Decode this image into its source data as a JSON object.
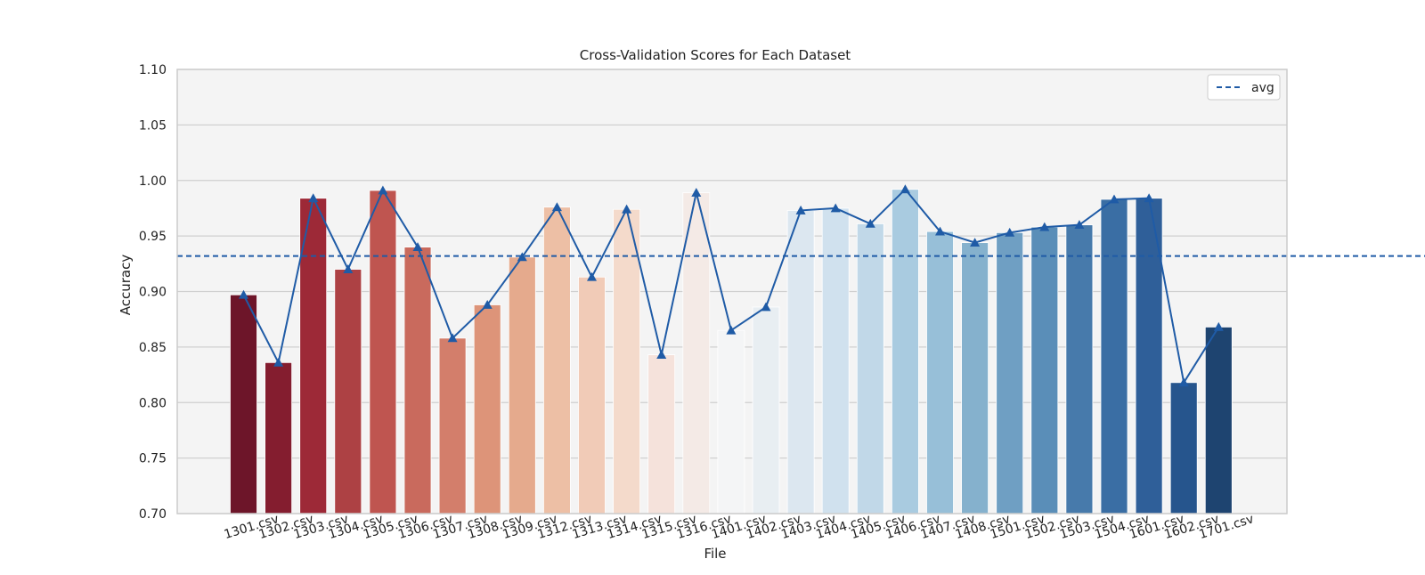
{
  "chart_data": {
    "type": "bar",
    "title": "Cross-Validation Scores for Each Dataset",
    "xlabel": "File",
    "ylabel": "Accuracy",
    "ylim": [
      0.7,
      1.1
    ],
    "yticks": [
      "0.70",
      "0.75",
      "0.80",
      "0.85",
      "0.90",
      "0.95",
      "1.00",
      "1.05",
      "1.10"
    ],
    "grid": true,
    "legend": {
      "placement": "top-right",
      "entries": [
        "avg"
      ]
    },
    "avg": 0.932,
    "categories": [
      "1301.csv",
      "1302.csv",
      "1303.csv",
      "1304.csv",
      "1305.csv",
      "1306.csv",
      "1307.csv",
      "1308.csv",
      "1309.csv",
      "1312.csv",
      "1313.csv",
      "1314.csv",
      "1315.csv",
      "1316.csv",
      "1401.csv",
      "1402.csv",
      "1403.csv",
      "1404.csv",
      "1405.csv",
      "1406.csv",
      "1407.csv",
      "1408.csv",
      "1501.csv",
      "1502.csv",
      "1503.csv",
      "1504.csv",
      "1601.csv",
      "1602.csv",
      "1701.csv"
    ],
    "values": [
      0.897,
      0.836,
      0.984,
      0.92,
      0.991,
      0.94,
      0.858,
      0.888,
      0.931,
      0.976,
      0.913,
      0.974,
      0.843,
      0.989,
      0.865,
      0.886,
      0.973,
      0.975,
      0.961,
      0.992,
      0.954,
      0.944,
      0.953,
      0.958,
      0.96,
      0.983,
      0.984,
      0.818,
      0.868
    ],
    "line_values": [
      0.897,
      0.836,
      0.984,
      0.92,
      0.991,
      0.94,
      0.858,
      0.888,
      0.931,
      0.976,
      0.913,
      0.974,
      0.843,
      0.989,
      0.865,
      0.886,
      0.973,
      0.975,
      0.961,
      0.992,
      0.954,
      0.944,
      0.953,
      0.958,
      0.96,
      0.983,
      0.984,
      0.818,
      0.868
    ],
    "colors": {
      "bars": [
        "#6d1529",
        "#841d2f",
        "#9d2937",
        "#ad4144",
        "#bf5550",
        "#c96a5d",
        "#d37e6b",
        "#dd9479",
        "#e5aa8d",
        "#edbfa5",
        "#f1cbb7",
        "#f4dacb",
        "#f5e2db",
        "#f4eae6",
        "#f4f5f6",
        "#e8eef2",
        "#dce7f0",
        "#d0e1ee",
        "#c1d8e8",
        "#a9cbe0",
        "#97bfd8",
        "#85b1cd",
        "#6f9fc3",
        "#5a8eb8",
        "#477aab",
        "#3a6ea4",
        "#2f5f99",
        "#26558d",
        "#1e4470"
      ],
      "line": "#1f5ba6",
      "avg_line": "#1f5ba6",
      "plot_bg": "#f4f4f4",
      "grid": "#d0d0d0",
      "frame": "#cccccc"
    }
  }
}
